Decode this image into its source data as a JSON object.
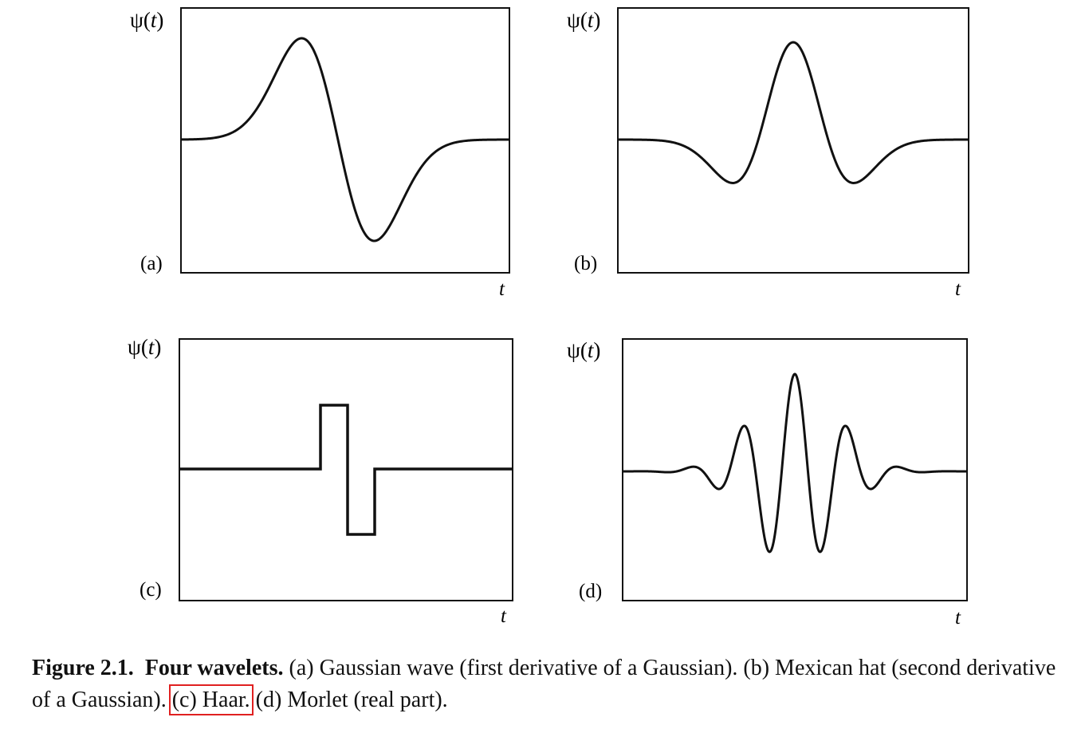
{
  "figure": {
    "panels": [
      {
        "id": "a",
        "label": "(a)",
        "y_axis_label_symbol": "ψ(",
        "y_axis_label_var": "t",
        "y_axis_label_close": ")",
        "x_axis_label": "t",
        "wavelet": "gaussian-wave"
      },
      {
        "id": "b",
        "label": "(b)",
        "y_axis_label_symbol": "ψ(",
        "y_axis_label_var": "t",
        "y_axis_label_close": ")",
        "x_axis_label": "t",
        "wavelet": "mexican-hat"
      },
      {
        "id": "c",
        "label": "(c)",
        "y_axis_label_symbol": "ψ(",
        "y_axis_label_var": "t",
        "y_axis_label_close": ")",
        "x_axis_label": "t",
        "wavelet": "haar"
      },
      {
        "id": "d",
        "label": "(d)",
        "y_axis_label_symbol": "ψ(",
        "y_axis_label_var": "t",
        "y_axis_label_close": ")",
        "x_axis_label": "t",
        "wavelet": "morlet-real"
      }
    ],
    "caption": {
      "figure_number": "Figure 2.1.",
      "title": "Four wavelets.",
      "part_a": "(a) Gaussian wave (first derivative of a Gaussian).",
      "part_b": "(b) Mexican hat (second derivative of a Gaussian).",
      "part_c": "(c) Haar.",
      "part_d": "(d) Morlet (real part)."
    },
    "colors": {
      "curve": "#111111",
      "highlight_box": "#e02020"
    }
  }
}
